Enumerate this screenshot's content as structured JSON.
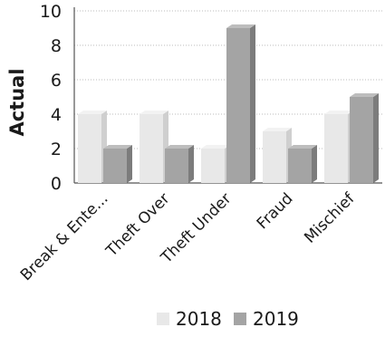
{
  "chart_data": {
    "type": "bar",
    "style": "3d-clustered-column",
    "categories": [
      "Break & Ente...",
      "Theft Over",
      "Theft Under",
      "Fraud",
      "Mischief"
    ],
    "series": [
      {
        "name": "2018",
        "values": [
          4,
          4,
          2,
          3,
          4
        ],
        "color": "#e8e8e8",
        "side_color": "#cfcfcf",
        "top_color": "#f2f2f2"
      },
      {
        "name": "2019",
        "values": [
          2,
          2,
          9,
          2,
          5
        ],
        "color": "#a4a4a4",
        "side_color": "#7c7c7c",
        "top_color": "#bdbdbd"
      }
    ],
    "ylabel": "Actual",
    "xlabel": "",
    "ylim": [
      0,
      10
    ],
    "yticks": [
      0,
      2,
      4,
      6,
      8,
      10
    ],
    "grid": true,
    "legend_position": "bottom"
  }
}
